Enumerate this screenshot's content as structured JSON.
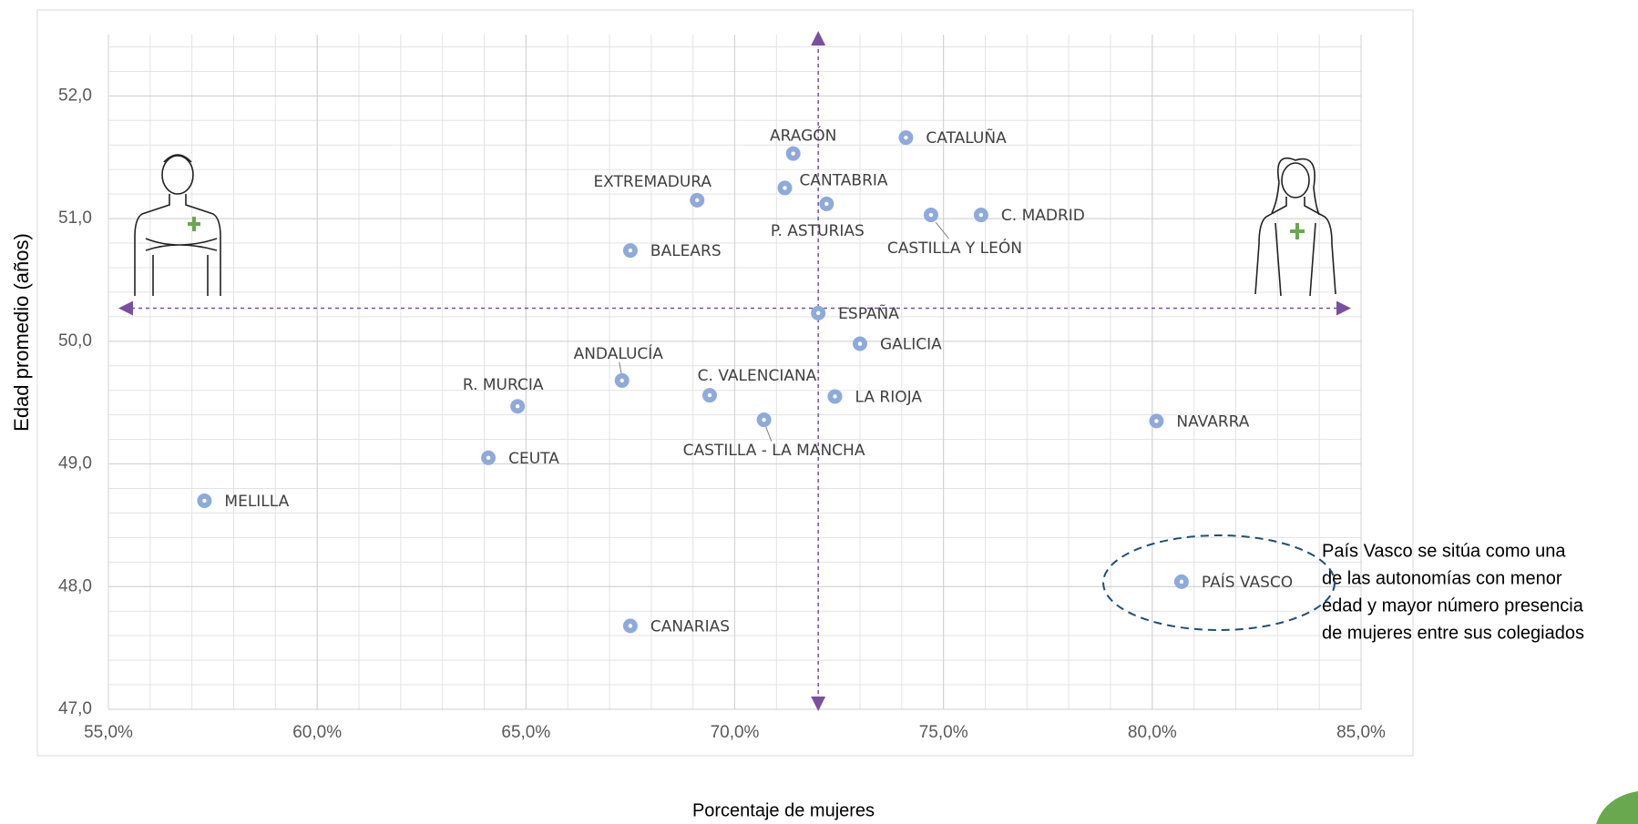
{
  "chart_data": {
    "type": "scatter",
    "x_label": "Porcentaje de mujeres",
    "y_label": "Edad promedio (años)",
    "annotation": [
      "País Vasco se sitúa como una",
      "de las autonomías con menor",
      "edad y mayor número presencia",
      "de mujeres entre sus colegiados"
    ],
    "color": "#8eaadb",
    "grid": true,
    "minor_grid": true,
    "xlim": [
      55,
      85
    ],
    "ylim": [
      47,
      52.5
    ],
    "xticks": [
      {
        "value": 55,
        "label": "55,0%"
      },
      {
        "value": 60,
        "label": "60,0%"
      },
      {
        "value": 65,
        "label": "65,0%"
      },
      {
        "value": 70,
        "label": "70,0%"
      },
      {
        "value": 75,
        "label": "75,0%"
      },
      {
        "value": 80,
        "label": "80,0%"
      },
      {
        "value": 85,
        "label": "85,0%"
      }
    ],
    "yticks": [
      {
        "value": 47,
        "label": "47,0"
      },
      {
        "value": 48,
        "label": "48,0"
      },
      {
        "value": 49,
        "label": "49,0"
      },
      {
        "value": 50,
        "label": "50,0"
      },
      {
        "value": 51,
        "label": "51,0"
      },
      {
        "value": 52,
        "label": "52,0"
      }
    ],
    "crosshair": {
      "x": 72.0,
      "y": 50.27,
      "color": "#7b4fa0"
    },
    "labels": [
      "MELILLA",
      "CEUTA",
      "R. MURCIA",
      "ANDALUCÍA",
      "C. VALENCIANA",
      "CASTILLA - LA MANCHA",
      "CANARIAS",
      "BALEARS",
      "EXTREMADURA",
      "ARAGÓN",
      "CANTABRIA",
      "P. ASTURIAS",
      "CATALUÑA",
      "CASTILLA Y LEÓN",
      "C. MADRID",
      "ESPAÑA",
      "GALICIA",
      "LA RIOJA",
      "NAVARRA",
      "PAÍS VASCO"
    ],
    "x": [
      57.3,
      64.1,
      64.8,
      67.3,
      69.4,
      70.7,
      67.5,
      67.5,
      69.1,
      71.4,
      71.2,
      72.2,
      74.1,
      74.7,
      75.9,
      72.0,
      73.0,
      72.4,
      80.1,
      80.7
    ],
    "values": [
      48.7,
      49.05,
      49.47,
      49.68,
      49.56,
      49.36,
      47.68,
      50.74,
      51.15,
      51.53,
      51.25,
      51.12,
      51.66,
      51.03,
      51.03,
      50.23,
      49.98,
      49.55,
      49.35,
      48.04
    ]
  }
}
